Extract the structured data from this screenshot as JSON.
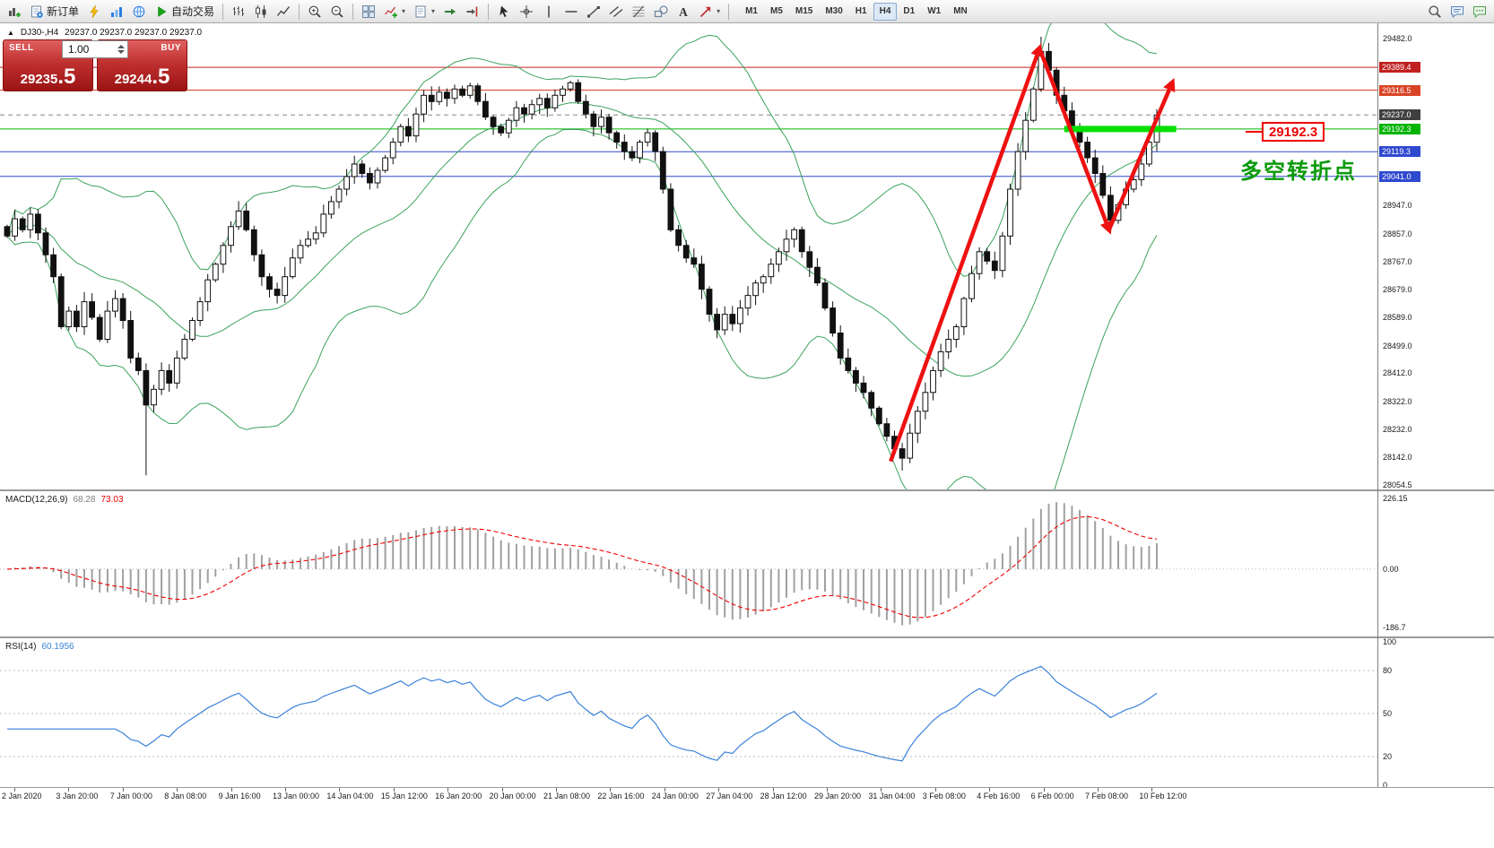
{
  "toolbar": {
    "caret_glyph": "▾",
    "left_buttons": [
      {
        "name": "new-chart-button",
        "icon": "chart-plus"
      },
      {
        "name": "new-order-button",
        "icon": "order-form",
        "label": "新订单"
      },
      {
        "name": "metaeditor-button",
        "icon": "flash"
      },
      {
        "name": "market-watch-button",
        "icon": "market"
      },
      {
        "name": "community-button",
        "icon": "globe"
      },
      {
        "name": "auto-trading-button",
        "icon": "play",
        "label": "自动交易"
      },
      {
        "sep": true
      },
      {
        "name": "bar-chart-button",
        "icon": "bars"
      },
      {
        "name": "candle-chart-button",
        "icon": "candles"
      },
      {
        "name": "line-chart-button",
        "icon": "linechart"
      },
      {
        "sep": true
      },
      {
        "name": "zoom-in-button",
        "icon": "zoom-in"
      },
      {
        "name": "zoom-out-button",
        "icon": "zoom-out"
      },
      {
        "sep": true
      },
      {
        "name": "tile-windows-button",
        "icon": "tile"
      },
      {
        "name": "indicators-button",
        "icon": "indicators",
        "caret": true
      },
      {
        "name": "templates-button",
        "icon": "templates",
        "caret": true
      },
      {
        "name": "auto-scroll-button",
        "icon": "autoscroll"
      },
      {
        "name": "chart-shift-button",
        "icon": "shift"
      },
      {
        "sep": true
      },
      {
        "name": "cursor-button",
        "icon": "cursor"
      },
      {
        "name": "crosshair-button",
        "icon": "crosshair"
      },
      {
        "name": "vertical-line-button",
        "icon": "vline"
      },
      {
        "name": "horizontal-line-button",
        "icon": "hline"
      },
      {
        "name": "trendline-button",
        "icon": "trendline"
      },
      {
        "name": "channel-button",
        "icon": "channel"
      },
      {
        "name": "fibonacci-button",
        "icon": "fibonacci"
      },
      {
        "name": "shapes-button",
        "icon": "shapes"
      },
      {
        "name": "text-button",
        "icon": "text"
      },
      {
        "name": "arrows-button",
        "icon": "arrows",
        "caret": true
      },
      {
        "sep": true
      }
    ],
    "timeframes": [
      "M1",
      "M5",
      "M15",
      "M30",
      "H1",
      "H4",
      "D1",
      "W1",
      "MN"
    ],
    "active_timeframe": "H4",
    "right_buttons": [
      {
        "name": "search-button",
        "icon": "search"
      },
      {
        "name": "chat-button",
        "icon": "chat"
      },
      {
        "name": "community-chat-button",
        "icon": "chat2"
      }
    ]
  },
  "chart": {
    "collapse_icon": "▲",
    "symbol_period": "DJ30-,H4",
    "ohlc_readout": "29237.0 29237.0 29237.0 29237.0"
  },
  "one_click": {
    "sell_label": "SELL",
    "sell_price": "29235",
    "sell_pips": ".5",
    "buy_label": "BUY",
    "buy_price": "29244",
    "buy_pips": ".5",
    "volume": "1.00"
  },
  "annotations": {
    "price_tag": "29192.3",
    "note": "多空转折点"
  },
  "macd_panel": {
    "name": "MACD(12,26,9)",
    "value_main": "68.28",
    "value_signal": "73.03",
    "axis_labels": [
      {
        "value": 226.15,
        "text": "226.15"
      },
      {
        "value": 0,
        "text": "0.00"
      },
      {
        "value": -186.7,
        "text": "-186.7"
      }
    ]
  },
  "rsi_panel": {
    "name": "RSI(14)",
    "value": "60.1956",
    "levels": [
      80,
      50,
      20
    ],
    "axis_labels": [
      {
        "value": 100,
        "text": "100"
      },
      {
        "value": 80,
        "text": "80"
      },
      {
        "value": 50,
        "text": "50"
      },
      {
        "value": 20,
        "text": "20"
      },
      {
        "value": 0,
        "text": "0"
      }
    ]
  },
  "price_axis": {
    "plain_ticks": [
      {
        "value": 29482.0,
        "text": "29482.0"
      },
      {
        "value": 28947.0,
        "text": "28947.0"
      },
      {
        "value": 28857.0,
        "text": "28857.0"
      },
      {
        "value": 28767.0,
        "text": "28767.0"
      },
      {
        "value": 28679.0,
        "text": "28679.0"
      },
      {
        "value": 28589.0,
        "text": "28589.0"
      },
      {
        "value": 28499.0,
        "text": "28499.0"
      },
      {
        "value": 28412.0,
        "text": "28412.0"
      },
      {
        "value": 28322.0,
        "text": "28322.0"
      },
      {
        "value": 28232.0,
        "text": "28232.0"
      },
      {
        "value": 28142.0,
        "text": "28142.0"
      },
      {
        "value": 28054.5,
        "text": "28054.5"
      }
    ],
    "marked_labels": [
      {
        "value": 29389.4,
        "text": "29389.4",
        "bg": "#c22020"
      },
      {
        "value": 29316.5,
        "text": "29316.5",
        "bg": "#d94426"
      },
      {
        "value": 29237.0,
        "text": "29237.0",
        "bg": "#3f3f3f"
      },
      {
        "value": 29192.3,
        "text": "29192.3",
        "bg": "#00b400"
      },
      {
        "value": 29119.3,
        "text": "29119.3",
        "bg": "#2f49cf"
      },
      {
        "value": 29041.0,
        "text": "29041.0",
        "bg": "#2f49cf"
      }
    ]
  },
  "time_axis": {
    "labels": [
      "2 Jan 2020",
      "3 Jan 20:00",
      "7 Jan 00:00",
      "8 Jan 08:00",
      "9 Jan 16:00",
      "13 Jan 00:00",
      "14 Jan 04:00",
      "15 Jan 12:00",
      "16 Jan 20:00",
      "20 Jan 00:00",
      "21 Jan 08:00",
      "22 Jan 16:00",
      "24 Jan 00:00",
      "27 Jan 04:00",
      "28 Jan 12:00",
      "29 Jan 20:00",
      "31 Jan 04:00",
      "3 Feb 08:00",
      "4 Feb 16:00",
      "6 Feb 00:00",
      "7 Feb 08:00",
      "10 Feb 12:00"
    ]
  },
  "chart_data": {
    "type": "candlestick",
    "title": "DJ30-,H4",
    "timeframe": "H4",
    "ylim": [
      28040,
      29530
    ],
    "candle_up_color": "#ffffff",
    "candle_down_color": "#111111",
    "candle_border_color": "#111111",
    "closes": [
      28850,
      28905,
      28870,
      28920,
      28860,
      28790,
      28720,
      28560,
      28610,
      28560,
      28640,
      28590,
      28520,
      28610,
      28650,
      28580,
      28460,
      28420,
      28310,
      28360,
      28420,
      28380,
      28460,
      28520,
      28580,
      28640,
      28710,
      28760,
      28820,
      28880,
      28930,
      28870,
      28790,
      28720,
      28680,
      28660,
      28720,
      28780,
      28820,
      28840,
      28860,
      28920,
      28960,
      29000,
      29040,
      29080,
      29050,
      29020,
      29060,
      29100,
      29150,
      29200,
      29170,
      29240,
      29300,
      29280,
      29310,
      29290,
      29320,
      29300,
      29330,
      29280,
      29230,
      29200,
      29180,
      29220,
      29260,
      29240,
      29270,
      29290,
      29260,
      29300,
      29320,
      29340,
      29280,
      29240,
      29200,
      29230,
      29180,
      29150,
      29120,
      29100,
      29150,
      29180,
      29120,
      29000,
      28870,
      28820,
      28780,
      28760,
      28680,
      28600,
      28550,
      28600,
      28570,
      28620,
      28660,
      28700,
      28720,
      28760,
      28800,
      28840,
      28870,
      28800,
      28750,
      28700,
      28620,
      28540,
      28460,
      28420,
      28380,
      28350,
      28300,
      28250,
      28210,
      28170,
      28140,
      28220,
      28290,
      28350,
      28420,
      28480,
      28520,
      28560,
      28650,
      28730,
      28800,
      28770,
      28740,
      28850,
      29000,
      29120,
      29220,
      29320,
      29440,
      29380,
      29300,
      29250,
      29200,
      29150,
      29100,
      29050,
      28980,
      28900,
      28950,
      29000,
      29030,
      29080,
      29150,
      29237
    ],
    "wick_overrides": [
      {
        "index": 18,
        "low": 28085
      },
      {
        "index": 116,
        "low": 28100
      },
      {
        "index": 134,
        "high": 29487
      }
    ],
    "bollinger": {
      "period": 20,
      "deviation": 2,
      "color": "#3aa35c"
    },
    "horizontal_lines": [
      {
        "price": 29389.4,
        "color": "#c22020",
        "style": "solid"
      },
      {
        "price": 29316.5,
        "color": "#d94426",
        "style": "solid"
      },
      {
        "price": 29237.0,
        "color": "#888888",
        "style": "dash",
        "role": "current-price"
      },
      {
        "price": 29192.3,
        "color": "#00b400",
        "style": "solid"
      },
      {
        "price": 29119.3,
        "color": "#2f49cf",
        "style": "solid"
      },
      {
        "price": 29041.0,
        "color": "#2f49cf",
        "style": "solid"
      }
    ],
    "support_bar": {
      "price": 29192.3,
      "from_index": 137,
      "to_index": 151.5,
      "color": "#00e000",
      "thickness": 7
    },
    "trend_arrows": {
      "color": "#ee1111",
      "segments": [
        {
          "from": {
            "index": 114.5,
            "price": 28130
          },
          "to": {
            "index": 133.8,
            "price": 29450
          }
        },
        {
          "from": {
            "index": 133.8,
            "price": 29450
          },
          "to": {
            "index": 142.8,
            "price": 28870
          }
        },
        {
          "from": {
            "index": 142.8,
            "price": 28870
          },
          "to": {
            "index": 151,
            "price": 29340
          }
        }
      ]
    },
    "macd": {
      "fast": 12,
      "slow": 26,
      "signal": 9,
      "histogram_color": "#a0a0a0",
      "signal_color": "#f00000"
    },
    "rsi": {
      "period": 14,
      "color": "#3b82d9"
    }
  }
}
